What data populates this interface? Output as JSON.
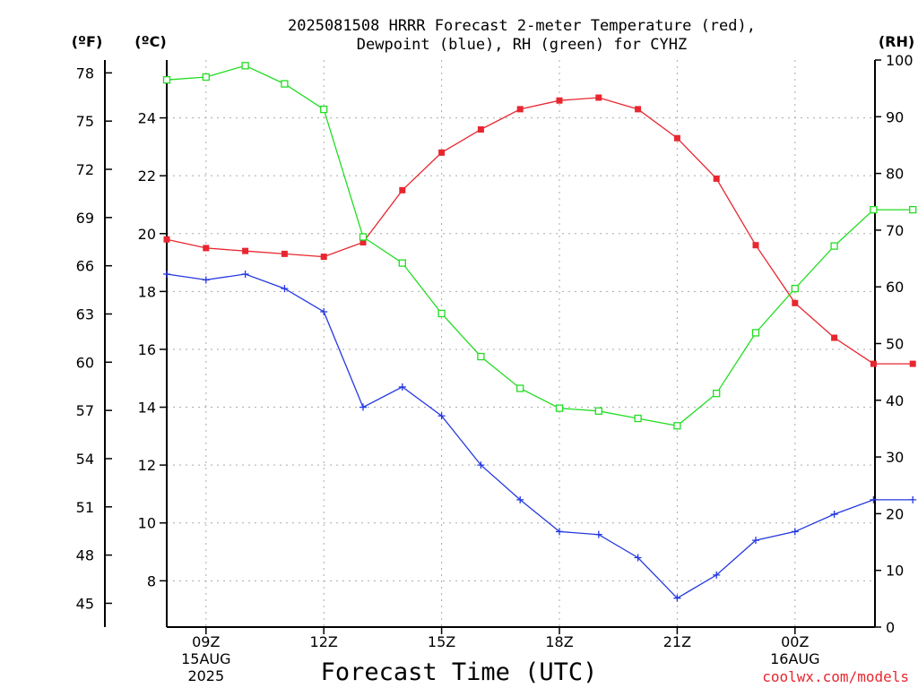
{
  "chart_data": {
    "type": "line",
    "title_lines": [
      "2025081508 HRRR Forecast 2-meter Temperature (red),",
      "Dewpoint (blue), RH (green) for CYHZ"
    ],
    "units": {
      "fahrenheit": "(ºF)",
      "celsius": "(ºC)",
      "rh": "(RH)"
    },
    "xlabel": "Forecast Time (UTC)",
    "credit": "coolwx.com/models",
    "x": [
      "08Z",
      "09Z",
      "10Z",
      "11Z",
      "12Z",
      "13Z",
      "14Z",
      "15Z",
      "16Z",
      "17Z",
      "18Z",
      "19Z",
      "20Z",
      "21Z",
      "22Z",
      "23Z",
      "00Z",
      "01Z",
      "02Z",
      "03Z"
    ],
    "x_ticks": [
      {
        "index": 1,
        "labels": [
          "09Z",
          "15AUG",
          "2025"
        ]
      },
      {
        "index": 4,
        "labels": [
          "12Z"
        ]
      },
      {
        "index": 7,
        "labels": [
          "15Z"
        ]
      },
      {
        "index": 10,
        "labels": [
          "18Z"
        ]
      },
      {
        "index": 13,
        "labels": [
          "21Z"
        ]
      },
      {
        "index": 16,
        "labels": [
          "00Z",
          "16AUG"
        ]
      }
    ],
    "left_axis_c": {
      "ticks": [
        "8",
        "10",
        "12",
        "14",
        "16",
        "18",
        "20",
        "22",
        "24"
      ],
      "ylim": [
        6.4,
        26.0
      ]
    },
    "left_axis_f": {
      "ticks": [
        "45",
        "48",
        "51",
        "54",
        "57",
        "60",
        "63",
        "66",
        "69",
        "72",
        "75",
        "78"
      ]
    },
    "right_axis_rh": {
      "ticks": [
        "0",
        "10",
        "20",
        "30",
        "40",
        "50",
        "60",
        "70",
        "80",
        "90",
        "100"
      ],
      "ylim": [
        0,
        100
      ]
    },
    "grid": true,
    "series": [
      {
        "name": "Temperature",
        "color": "#e8262f",
        "marker": "filled-square",
        "axis": "celsius",
        "values": [
          19.8,
          19.5,
          19.4,
          19.3,
          19.2,
          19.7,
          21.5,
          22.8,
          23.6,
          24.3,
          24.6,
          24.7,
          24.3,
          23.3,
          21.9,
          19.6,
          17.6,
          16.4,
          15.5,
          15.5
        ]
      },
      {
        "name": "Dewpoint",
        "color": "#2438e0",
        "marker": "plus",
        "axis": "celsius",
        "values": [
          18.6,
          18.4,
          18.6,
          18.1,
          17.3,
          14.0,
          14.7,
          13.7,
          12.0,
          10.8,
          9.7,
          9.6,
          8.8,
          7.4,
          8.2,
          9.4,
          9.7,
          10.3,
          10.8,
          10.8
        ]
      },
      {
        "name": "RH",
        "color": "#22dd22",
        "marker": "open-square",
        "axis": "rh",
        "values": [
          96.5,
          97.0,
          99.0,
          95.8,
          91.3,
          68.8,
          64.2,
          55.3,
          47.7,
          42.1,
          38.6,
          38.1,
          36.8,
          35.5,
          41.2,
          51.9,
          59.7,
          67.2,
          73.6,
          73.6
        ]
      }
    ]
  }
}
